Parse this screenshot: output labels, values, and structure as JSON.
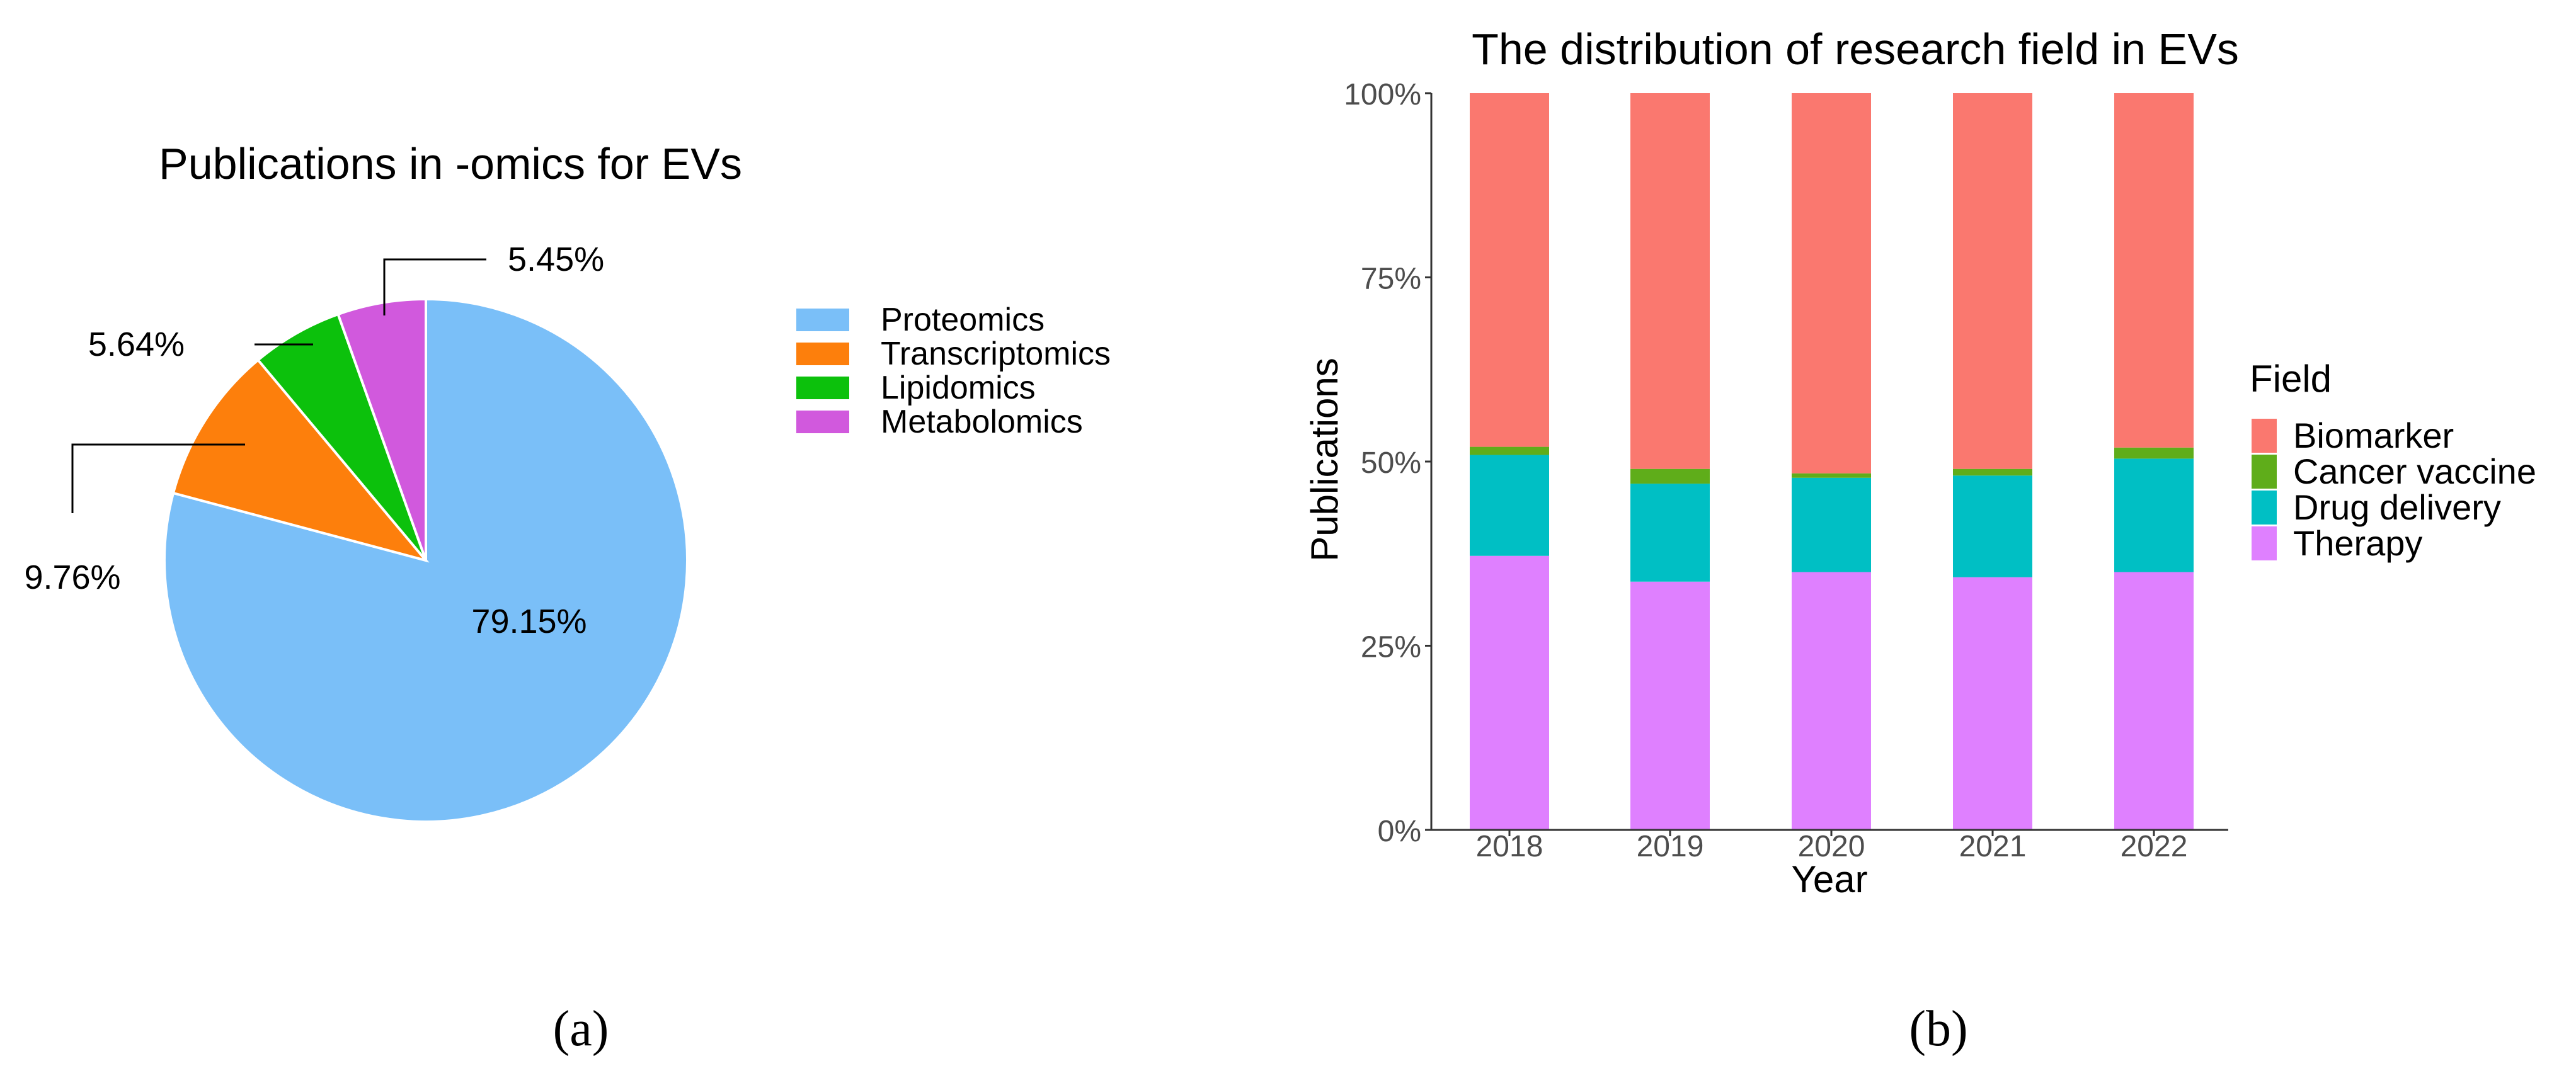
{
  "chart_data": [
    {
      "type": "pie",
      "title": "Publications in -omics for EVs",
      "categories": [
        "Proteomics",
        "Transcriptomics",
        "Lipidomics",
        "Metabolomics"
      ],
      "values": [
        79.15,
        9.76,
        5.64,
        5.45
      ],
      "value_labels": [
        "79.15%",
        "9.76%",
        "5.64%",
        "5.45%"
      ],
      "colors": [
        "#7abff8",
        "#fd7f0c",
        "#0cc10c",
        "#d159dd"
      ],
      "legend_position": "right",
      "caption": "(a)"
    },
    {
      "type": "bar",
      "stacked": true,
      "title": "The distribution of research field in EVs",
      "xlabel": "Year",
      "ylabel": "Publications",
      "categories": [
        "2018",
        "2019",
        "2020",
        "2021",
        "2022"
      ],
      "yticks": [
        "0%",
        "25%",
        "50%",
        "75%",
        "100%"
      ],
      "ylim": [
        0,
        100
      ],
      "legend_title": "Field",
      "legend_position": "right",
      "series": [
        {
          "name": "Therapy",
          "color": "#df80ff",
          "values": [
            37.2,
            33.7,
            35.0,
            34.3,
            35.0
          ]
        },
        {
          "name": "Drug delivery",
          "color": "#00bfc4",
          "values": [
            13.7,
            13.3,
            12.8,
            13.8,
            15.4
          ]
        },
        {
          "name": "Cancer vaccine",
          "color": "#5fad1a",
          "values": [
            1.1,
            2.0,
            0.6,
            0.9,
            1.5
          ]
        },
        {
          "name": "Biomarker",
          "color": "#fa786f",
          "values": [
            48.0,
            51.0,
            51.6,
            51.0,
            48.1
          ]
        }
      ],
      "legend_order": [
        "Biomarker",
        "Cancer vaccine",
        "Drug delivery",
        "Therapy"
      ],
      "caption": "(b)"
    }
  ]
}
